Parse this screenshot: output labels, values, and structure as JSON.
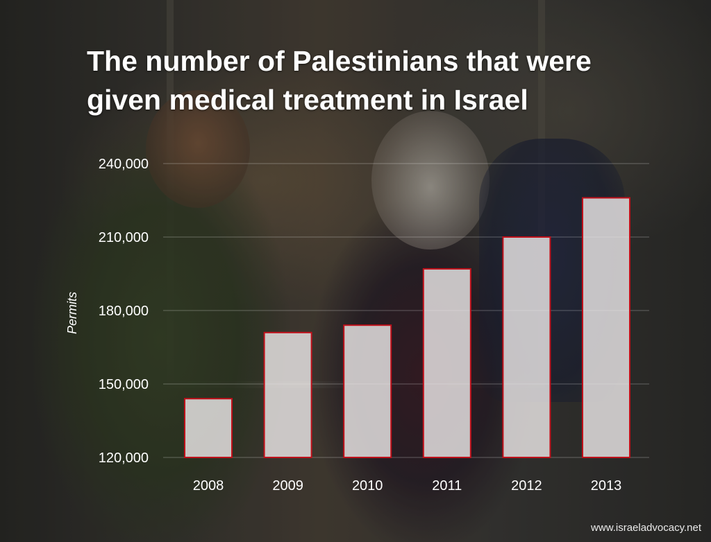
{
  "title": "The number of Palestinians that were given medical treatment in Israel",
  "watermark": "www.israeladvocacy.net",
  "colors": {
    "bar_fill": "#ebe8e8",
    "bar_stroke": "#c0101a",
    "text": "#ffffff"
  },
  "chart_data": {
    "type": "bar",
    "title": "The number of Palestinians that were given medical treatment in Israel",
    "xlabel": "",
    "ylabel": "Permits",
    "categories": [
      "2008",
      "2009",
      "2010",
      "2011",
      "2012",
      "2013"
    ],
    "values": [
      144000,
      171000,
      174000,
      197000,
      210000,
      226000
    ],
    "yticks": [
      "120,000",
      "150,000",
      "180,000",
      "210,000",
      "240,000"
    ],
    "ytick_values": [
      120000,
      150000,
      180000,
      210000,
      240000
    ],
    "ylim": [
      120000,
      240000
    ],
    "grid": true,
    "legend": "none"
  }
}
